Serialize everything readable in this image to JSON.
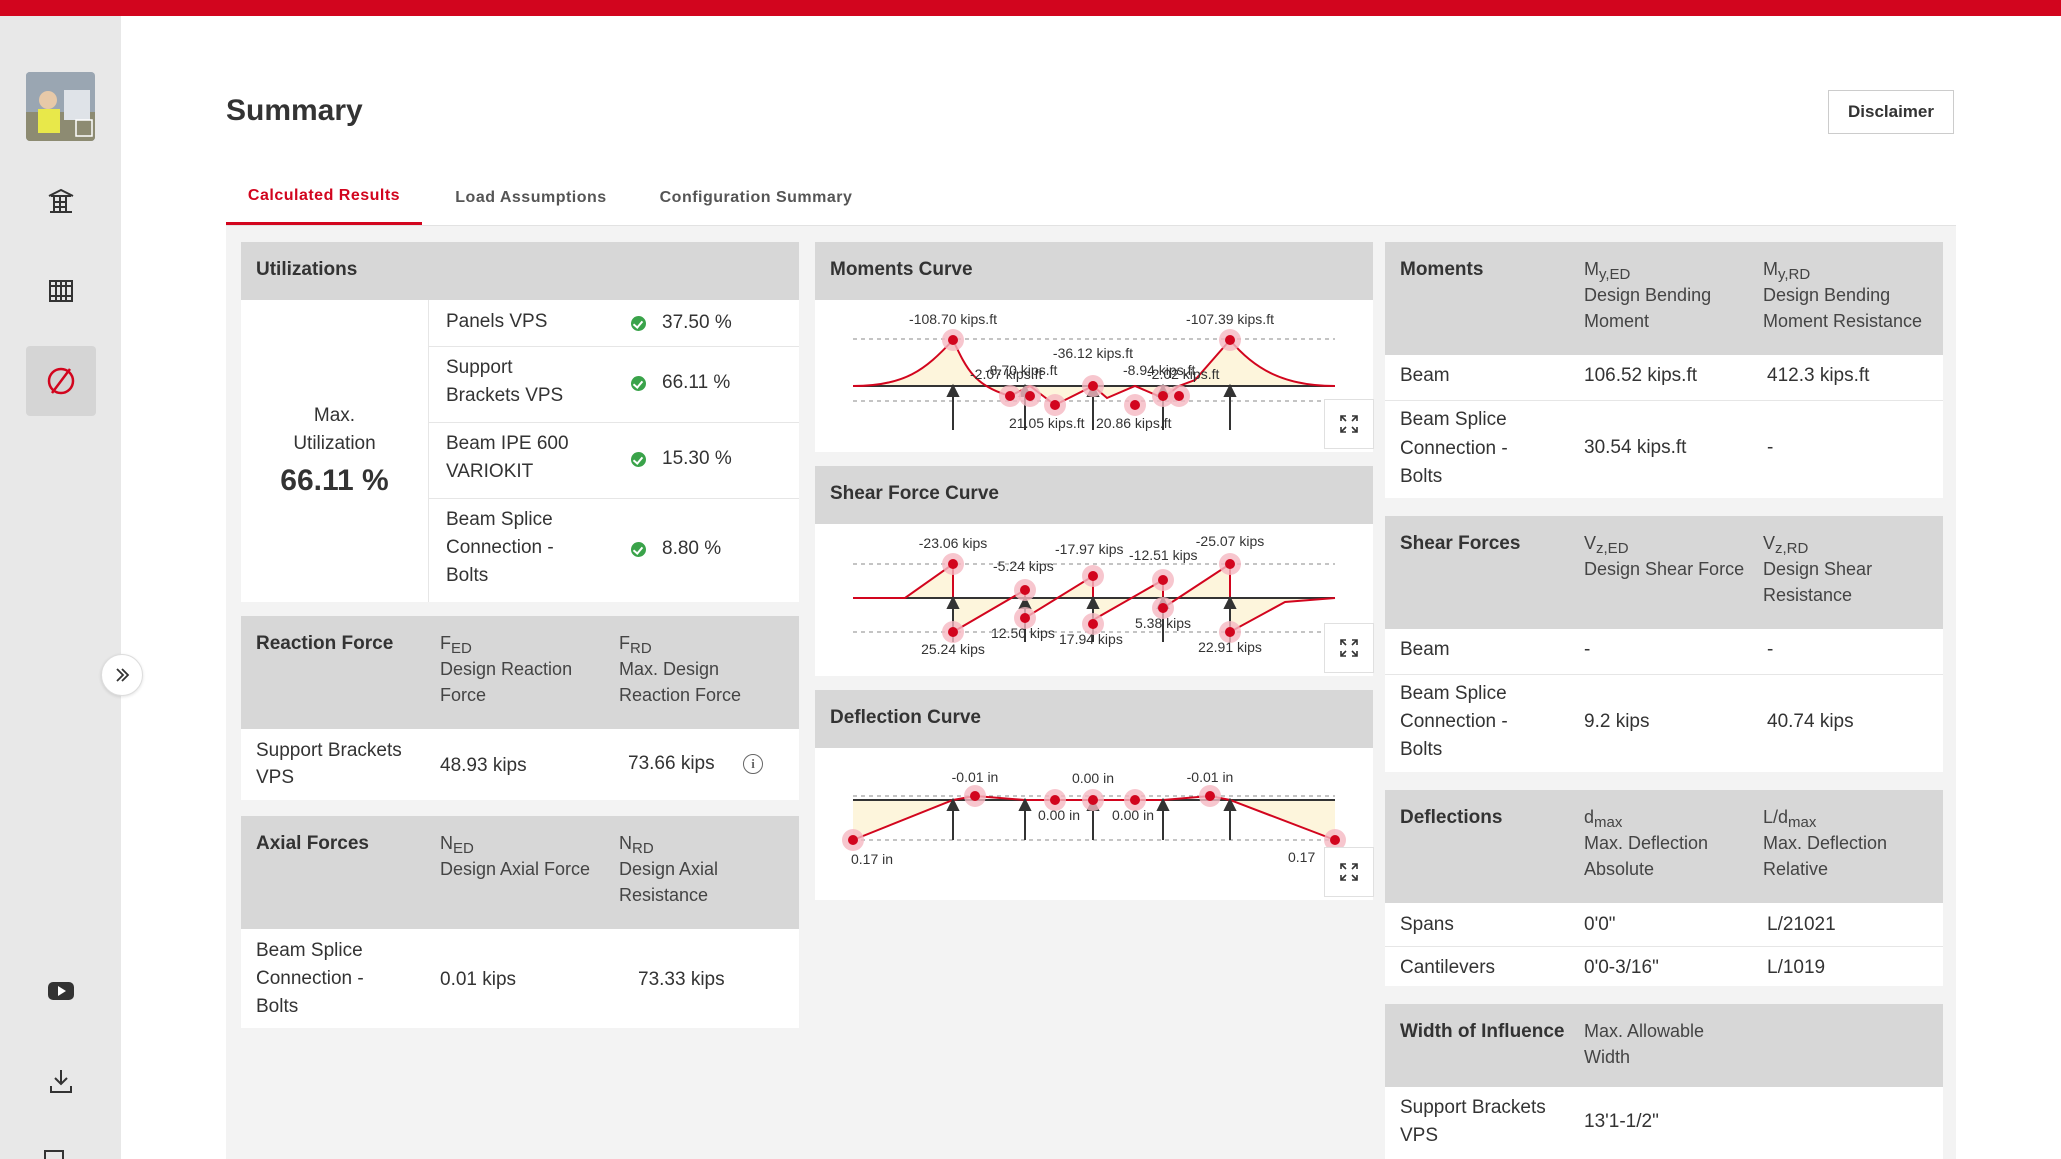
{
  "page": {
    "title": "Summary",
    "disclaimer_label": "Disclaimer"
  },
  "tabs": [
    "Calculated Results",
    "Load Assumptions",
    "Configuration Summary"
  ],
  "sidebar": {
    "icons": [
      "avatar",
      "building-icon",
      "formwork-icon",
      "no-symbol-icon",
      "youtube-icon",
      "download-icon"
    ]
  },
  "colors": {
    "brand": "#d2051e",
    "ok": "#3aa34a",
    "header_bg": "#d7d7d7",
    "curve_fill": "#fdf5dc"
  },
  "utilizations": {
    "title": "Utilizations",
    "max_label_1": "Max.",
    "max_label_2": "Utilization",
    "max_value": "66.11 %",
    "rows": [
      {
        "line1": "Panels VPS",
        "line2": "",
        "line3": "",
        "value": "37.50 %"
      },
      {
        "line1": "Support",
        "line2": "Brackets VPS",
        "line3": "",
        "value": "66.11 %"
      },
      {
        "line1": "Beam IPE 600",
        "line2": "VARIOKIT",
        "line3": "",
        "value": "15.30 %"
      },
      {
        "line1": "Beam Splice",
        "line2": "Connection -",
        "line3": "Bolts",
        "value": "8.80 %"
      }
    ]
  },
  "reaction_force": {
    "title": "Reaction Force",
    "col1": {
      "sym": "F",
      "sub": "ED",
      "desc1": "Design Reaction",
      "desc2": "Force"
    },
    "col2": {
      "sym": "F",
      "sub": "RD",
      "desc1": "Max. Design",
      "desc2": "Reaction Force"
    },
    "row": {
      "name1": "Support Brackets",
      "name2": "VPS",
      "v1": "48.93 kips",
      "v2": "73.66 kips"
    }
  },
  "axial_forces": {
    "title": "Axial Forces",
    "col1": {
      "sym": "N",
      "sub": "ED",
      "desc1": "Design Axial Force",
      "desc2": ""
    },
    "col2": {
      "sym": "N",
      "sub": "RD",
      "desc1": "Design Axial",
      "desc2": "Resistance"
    },
    "row": {
      "name1": "Beam Splice",
      "name2": "Connection -",
      "name3": "Bolts",
      "v1": "0.01 kips",
      "v2": "73.33 kips"
    }
  },
  "charts": {
    "moments": {
      "title": "Moments Curve",
      "labels": [
        "-108.70 kips.ft",
        "-107.39 kips.ft",
        "-36.12 kips.ft",
        "-2.07 kips.ft",
        "-8.70 kips.ft",
        "-8.94 kips.ft",
        "-2.02 kips.ft",
        "21.05 kips.ft",
        "20.86 kips.ft"
      ]
    },
    "shear": {
      "title": "Shear Force Curve",
      "labels": [
        "-23.06 kips",
        "-25.07 kips",
        "-5.24 kips",
        "-17.97 kips",
        "-12.51 kips",
        "12.50 kips",
        "17.94 kips",
        "5.38 kips",
        "25.24 kips",
        "22.91 kips"
      ]
    },
    "deflection": {
      "title": "Deflection Curve",
      "labels": [
        "-0.01 in",
        "0.00 in",
        "-0.01 in",
        "0.00 in",
        "0.00 in",
        "0.17 in",
        "0.17"
      ]
    }
  },
  "moments_table": {
    "title": "Moments",
    "col1": {
      "sym": "M",
      "sub": "y,ED",
      "desc1": "Design Bending",
      "desc2": "Moment"
    },
    "col2": {
      "sym": "M",
      "sub": "y,RD",
      "desc1": "Design Bending",
      "desc2": "Moment Resistance"
    },
    "rows": [
      {
        "name1": "Beam",
        "name2": "",
        "name3": "",
        "v1": "106.52 kips.ft",
        "v2": "412.3 kips.ft"
      },
      {
        "name1": "Beam Splice",
        "name2": "Connection -",
        "name3": "Bolts",
        "v1": "30.54 kips.ft",
        "v2": "-"
      }
    ]
  },
  "shear_table": {
    "title": "Shear Forces",
    "col1": {
      "sym": "V",
      "sub": "z,ED",
      "desc1": "Design Shear Force",
      "desc2": ""
    },
    "col2": {
      "sym": "V",
      "sub": "z,RD",
      "desc1": "Design Shear",
      "desc2": "Resistance"
    },
    "rows": [
      {
        "name1": "Beam",
        "name2": "",
        "name3": "",
        "v1": "-",
        "v2": "-"
      },
      {
        "name1": "Beam Splice",
        "name2": "Connection -",
        "name3": "Bolts",
        "v1": "9.2 kips",
        "v2": "40.74 kips"
      }
    ]
  },
  "deflections_table": {
    "title": "Deflections",
    "col1": {
      "sym": "d",
      "sub": "max",
      "desc1": "Max. Deflection",
      "desc2": "Absolute"
    },
    "col2": {
      "sym": "L/d",
      "sub": "max",
      "desc1": "Max. Deflection",
      "desc2": "Relative"
    },
    "rows": [
      {
        "name": "Spans",
        "v1": "0'0\"",
        "v2": "L/21021"
      },
      {
        "name": "Cantilevers",
        "v1": "0'0-3/16\"",
        "v2": "L/1019"
      }
    ]
  },
  "width_table": {
    "title": "Width of Influence",
    "desc1": "Max. Allowable",
    "desc2": "Width",
    "row": {
      "name1": "Support Brackets",
      "name2": "VPS",
      "v1": "13'1-1/2\""
    }
  }
}
